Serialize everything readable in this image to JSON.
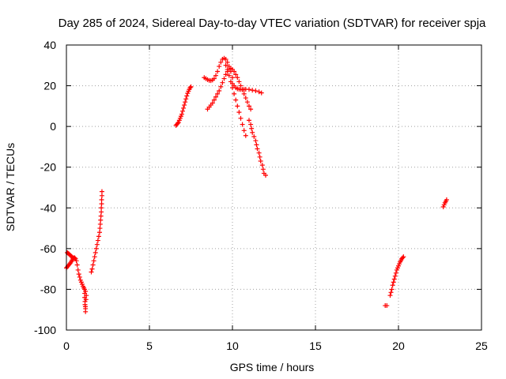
{
  "chart_data": {
    "type": "scatter",
    "title": "Day 285 of 2024, Sidereal Day-to-day VTEC variation (SDTVAR) for receiver spja",
    "xlabel": "GPS time / hours",
    "ylabel": "SDTVAR / TECUs",
    "xlim": [
      0,
      25
    ],
    "ylim": [
      -100,
      40
    ],
    "xticks": [
      "0",
      "5",
      "10",
      "15",
      "20",
      "25"
    ],
    "xtick_values": [
      0,
      5,
      10,
      15,
      20,
      25
    ],
    "yticks": [
      "40",
      "20",
      "0",
      "-20",
      "-40",
      "-60",
      "-80",
      "-100"
    ],
    "ytick_values": [
      40,
      20,
      0,
      -20,
      -40,
      -60,
      -80,
      -100
    ],
    "grid": true,
    "marker": "plus",
    "color": "#ff0000",
    "series": [
      {
        "points": [
          [
            0.0,
            -69.5
          ],
          [
            0.05,
            -69
          ],
          [
            0.1,
            -68.5
          ],
          [
            0.15,
            -68
          ],
          [
            0.2,
            -67.5
          ],
          [
            0.25,
            -67
          ],
          [
            0.3,
            -66.3
          ],
          [
            0.35,
            -65.6
          ],
          [
            0.4,
            -65
          ],
          [
            0.45,
            -64.5
          ],
          [
            0.5,
            -64.5
          ],
          [
            0.55,
            -65
          ],
          [
            0.6,
            -66
          ],
          [
            0.65,
            -68
          ],
          [
            0.7,
            -70.5
          ],
          [
            0.75,
            -72.5
          ],
          [
            0.8,
            -74
          ],
          [
            0.85,
            -75.5
          ],
          [
            0.9,
            -76.5
          ],
          [
            0.95,
            -77.5
          ],
          [
            1.0,
            -78.5
          ],
          [
            1.05,
            -79.3
          ],
          [
            1.1,
            -80
          ],
          [
            1.15,
            -81
          ],
          [
            0.05,
            -62
          ],
          [
            0.1,
            -62.3
          ],
          [
            0.15,
            -62.6
          ],
          [
            0.2,
            -63
          ],
          [
            0.25,
            -63.4
          ],
          [
            0.3,
            -63.8
          ],
          [
            0.35,
            -64.2
          ],
          [
            0.4,
            -64.6
          ],
          [
            1.1,
            -82
          ],
          [
            1.1,
            -84
          ],
          [
            1.12,
            -86
          ],
          [
            1.12,
            -87.5
          ],
          [
            1.14,
            -88.5
          ],
          [
            1.15,
            -89.5
          ],
          [
            1.15,
            -91
          ],
          [
            1.18,
            -85
          ],
          [
            1.2,
            -83
          ],
          [
            1.5,
            -71.5
          ],
          [
            1.55,
            -70
          ],
          [
            1.6,
            -68
          ],
          [
            1.65,
            -66
          ],
          [
            1.7,
            -64
          ],
          [
            1.75,
            -62
          ],
          [
            1.8,
            -60
          ],
          [
            1.85,
            -58
          ],
          [
            1.9,
            -56
          ],
          [
            1.95,
            -54
          ],
          [
            2.0,
            -52
          ],
          [
            2.02,
            -50
          ],
          [
            2.04,
            -48
          ],
          [
            2.06,
            -46
          ],
          [
            2.08,
            -44
          ],
          [
            2.1,
            -42
          ],
          [
            2.1,
            -40
          ],
          [
            2.12,
            -38
          ],
          [
            2.12,
            -36
          ],
          [
            2.14,
            -34
          ],
          [
            2.14,
            -32
          ],
          [
            6.6,
            0.5
          ],
          [
            6.65,
            1
          ],
          [
            6.7,
            1.5
          ],
          [
            6.75,
            2
          ],
          [
            6.8,
            3
          ],
          [
            6.85,
            4
          ],
          [
            6.9,
            5
          ],
          [
            6.95,
            6
          ],
          [
            7.0,
            7.5
          ],
          [
            7.05,
            9
          ],
          [
            7.1,
            10.5
          ],
          [
            7.15,
            12
          ],
          [
            7.2,
            13.5
          ],
          [
            7.25,
            15
          ],
          [
            7.3,
            16.3
          ],
          [
            7.35,
            17.3
          ],
          [
            7.4,
            18.2
          ],
          [
            7.45,
            19
          ],
          [
            7.5,
            19.5
          ],
          [
            8.3,
            24
          ],
          [
            8.4,
            23.5
          ],
          [
            8.5,
            23
          ],
          [
            8.6,
            22.6
          ],
          [
            8.7,
            22.5
          ],
          [
            8.8,
            22.8
          ],
          [
            8.9,
            23.5
          ],
          [
            9.0,
            25
          ],
          [
            9.1,
            27
          ],
          [
            9.2,
            29.5
          ],
          [
            9.3,
            31.5
          ],
          [
            9.4,
            33
          ],
          [
            9.5,
            33.5
          ],
          [
            9.6,
            33
          ],
          [
            9.7,
            31.5
          ],
          [
            9.8,
            29.5
          ],
          [
            9.9,
            27
          ],
          [
            10.0,
            24
          ],
          [
            8.5,
            8.5
          ],
          [
            8.6,
            9.5
          ],
          [
            8.7,
            10.5
          ],
          [
            8.8,
            11.5
          ],
          [
            8.9,
            13
          ],
          [
            9.0,
            14.5
          ],
          [
            9.1,
            16
          ],
          [
            9.2,
            17.5
          ],
          [
            9.3,
            19.5
          ],
          [
            9.4,
            21.5
          ],
          [
            9.5,
            23.5
          ],
          [
            9.6,
            25.5
          ],
          [
            9.7,
            27
          ],
          [
            9.8,
            28
          ],
          [
            9.9,
            28.5
          ],
          [
            10.0,
            28
          ],
          [
            10.1,
            27
          ],
          [
            10.2,
            25.5
          ],
          [
            10.3,
            24
          ],
          [
            10.4,
            22
          ],
          [
            10.5,
            20
          ],
          [
            10.6,
            18
          ],
          [
            10.7,
            16
          ],
          [
            10.8,
            14
          ],
          [
            10.9,
            12
          ],
          [
            11.0,
            10
          ],
          [
            11.1,
            8.5
          ],
          [
            9.6,
            30
          ],
          [
            9.7,
            28
          ],
          [
            9.8,
            25
          ],
          [
            9.9,
            22
          ],
          [
            10.0,
            19
          ],
          [
            10.1,
            16
          ],
          [
            10.2,
            13
          ],
          [
            10.3,
            10
          ],
          [
            10.4,
            7
          ],
          [
            10.5,
            4
          ],
          [
            10.6,
            1
          ],
          [
            10.7,
            -2
          ],
          [
            10.8,
            -4.5
          ],
          [
            10.0,
            21
          ],
          [
            10.1,
            20
          ],
          [
            10.2,
            19
          ],
          [
            10.3,
            18.5
          ],
          [
            10.4,
            18.3
          ],
          [
            10.5,
            18.2
          ],
          [
            10.6,
            18.2
          ],
          [
            10.7,
            18.2
          ],
          [
            10.8,
            18.3
          ],
          [
            11.0,
            18.2
          ],
          [
            11.2,
            17.8
          ],
          [
            11.4,
            17.5
          ],
          [
            11.6,
            17
          ],
          [
            11.75,
            16.5
          ],
          [
            11.0,
            3
          ],
          [
            11.1,
            1
          ],
          [
            11.15,
            -1
          ],
          [
            11.2,
            -3
          ],
          [
            11.3,
            -5
          ],
          [
            11.4,
            -7
          ],
          [
            11.45,
            -9
          ],
          [
            11.5,
            -11
          ],
          [
            11.6,
            -13
          ],
          [
            11.65,
            -15
          ],
          [
            11.7,
            -17
          ],
          [
            11.8,
            -19
          ],
          [
            11.85,
            -21
          ],
          [
            11.9,
            -23
          ],
          [
            12.0,
            -24
          ],
          [
            19.2,
            -88
          ],
          [
            19.3,
            -88
          ],
          [
            19.5,
            -83
          ],
          [
            19.55,
            -81.5
          ],
          [
            19.6,
            -80
          ],
          [
            19.65,
            -78
          ],
          [
            19.7,
            -76.5
          ],
          [
            19.75,
            -75
          ],
          [
            19.8,
            -73.5
          ],
          [
            19.85,
            -72
          ],
          [
            19.9,
            -70.5
          ],
          [
            19.95,
            -69.5
          ],
          [
            20.0,
            -68.5
          ],
          [
            20.05,
            -67.5
          ],
          [
            20.1,
            -66.5
          ],
          [
            20.15,
            -65.8
          ],
          [
            20.2,
            -65
          ],
          [
            20.25,
            -64.5
          ],
          [
            20.3,
            -64
          ],
          [
            22.7,
            -39.5
          ],
          [
            22.75,
            -38.5
          ],
          [
            22.8,
            -37.5
          ],
          [
            22.85,
            -36.8
          ],
          [
            22.9,
            -36
          ]
        ]
      }
    ]
  }
}
